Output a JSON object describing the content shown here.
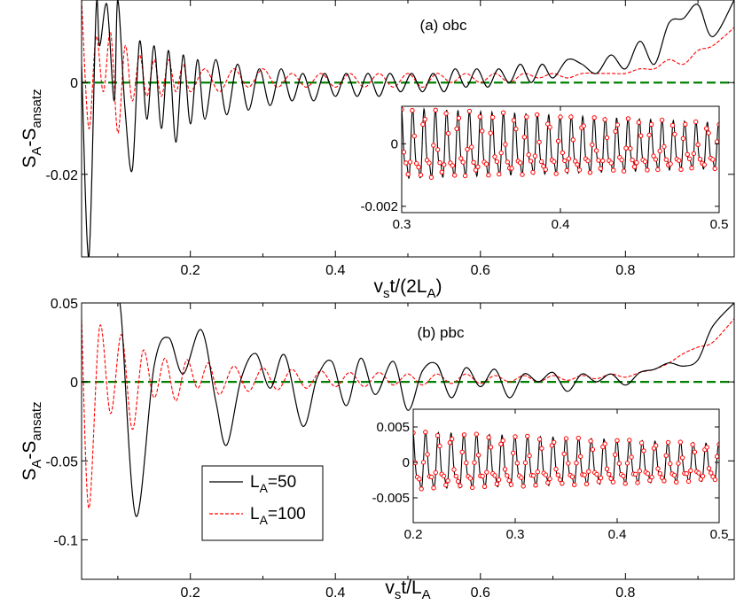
{
  "chart_data": [
    {
      "id": "a",
      "type": "line",
      "panel_label": "(a) obc",
      "xlabel": {
        "base": "v",
        "sub": "s",
        "rest": "t/(2L",
        "sub2": "A",
        "close": ")"
      },
      "ylabel": {
        "base": "S",
        "sub": "A",
        "mid": "-S",
        "sub2": "ansatz"
      },
      "xlim": [
        0.05,
        0.95
      ],
      "ylim": [
        -0.038,
        0.018
      ],
      "xticks": [
        0.2,
        0.4,
        0.6,
        0.8
      ],
      "xtick_labels": [
        "0.2",
        "0.4",
        "0.6",
        "0.8"
      ],
      "yticks": [
        0,
        -0.02
      ],
      "ytick_labels": [
        "0",
        "-0.02"
      ],
      "reference_line": 0,
      "series": [
        {
          "name": "L_A=50",
          "color": "#000000",
          "style": "solid",
          "x": [
            0.05,
            0.06,
            0.07,
            0.075,
            0.085,
            0.095,
            0.1,
            0.11,
            0.12,
            0.13,
            0.14,
            0.15,
            0.16,
            0.17,
            0.18,
            0.19,
            0.2,
            0.21,
            0.22,
            0.235,
            0.25,
            0.265,
            0.28,
            0.295,
            0.31,
            0.325,
            0.34,
            0.355,
            0.37,
            0.385,
            0.4,
            0.415,
            0.43,
            0.445,
            0.46,
            0.475,
            0.49,
            0.505,
            0.52,
            0.535,
            0.55,
            0.565,
            0.58,
            0.595,
            0.61,
            0.625,
            0.64,
            0.655,
            0.67,
            0.685,
            0.7,
            0.72,
            0.74,
            0.76,
            0.78,
            0.8,
            0.82,
            0.84,
            0.86,
            0.88,
            0.9,
            0.92,
            0.95
          ],
          "y": [
            0.004,
            -0.038,
            0.016,
            0.008,
            0.017,
            -0.004,
            0.018,
            -0.006,
            -0.019,
            0.009,
            -0.008,
            0.008,
            -0.01,
            0.007,
            -0.013,
            0.006,
            -0.009,
            0.005,
            -0.008,
            0.005,
            -0.007,
            0.004,
            -0.006,
            0.003,
            -0.005,
            0.003,
            -0.004,
            0.002,
            -0.004,
            0.002,
            -0.003,
            0.002,
            -0.003,
            0.002,
            -0.003,
            0.002,
            -0.002,
            0.002,
            -0.002,
            0.002,
            -0.002,
            0.003,
            -0.001,
            0.003,
            -0.001,
            0.003,
            0.0,
            0.004,
            0.0,
            0.004,
            0.001,
            0.005,
            0.004,
            0.002,
            0.006,
            0.003,
            0.009,
            0.004,
            0.013,
            0.014,
            0.017,
            0.01,
            0.018
          ]
        },
        {
          "name": "L_A=100",
          "color": "#ff0000",
          "style": "dashed",
          "x": [
            0.05,
            0.06,
            0.07,
            0.08,
            0.09,
            0.1,
            0.11,
            0.12,
            0.13,
            0.14,
            0.15,
            0.16,
            0.17,
            0.18,
            0.19,
            0.2,
            0.22,
            0.24,
            0.26,
            0.28,
            0.3,
            0.32,
            0.34,
            0.36,
            0.38,
            0.4,
            0.42,
            0.44,
            0.46,
            0.48,
            0.5,
            0.52,
            0.54,
            0.56,
            0.58,
            0.6,
            0.62,
            0.64,
            0.66,
            0.68,
            0.7,
            0.72,
            0.74,
            0.76,
            0.78,
            0.8,
            0.82,
            0.84,
            0.86,
            0.88,
            0.9,
            0.92,
            0.95
          ],
          "y": [
            0.018,
            -0.01,
            0.01,
            -0.002,
            0.011,
            -0.011,
            0.008,
            -0.004,
            0.006,
            -0.003,
            0.005,
            -0.003,
            0.005,
            -0.002,
            0.004,
            -0.002,
            0.003,
            -0.002,
            0.003,
            -0.001,
            0.003,
            -0.001,
            0.002,
            -0.001,
            0.002,
            -0.001,
            0.002,
            -0.001,
            0.002,
            -0.001,
            0.002,
            -0.001,
            0.002,
            0.0,
            0.002,
            0.0,
            0.002,
            0.0,
            0.002,
            0.001,
            0.002,
            0.001,
            0.002,
            0.002,
            0.002,
            0.002,
            0.003,
            0.003,
            0.005,
            0.004,
            0.007,
            0.008,
            0.012
          ]
        }
      ],
      "inset": {
        "xlim": [
          0.3,
          0.5
        ],
        "ylim": [
          -0.0022,
          0.0012
        ],
        "xticks": [
          0.3,
          0.4,
          0.5
        ],
        "xtick_labels": [
          "0.3",
          "0.4",
          "0.5"
        ],
        "yticks": [
          0,
          -0.002
        ],
        "ytick_labels": [
          "0",
          "-0.002"
        ],
        "period": 0.00714,
        "amplitude": 0.00125,
        "offset": -0.0002,
        "marker_color": "#ff0000"
      }
    },
    {
      "id": "b",
      "type": "line",
      "panel_label": "(b) pbc",
      "xlabel": {
        "base": "v",
        "sub": "s",
        "rest": "t/L",
        "sub2": "A",
        "close": ""
      },
      "ylabel": {
        "base": "S",
        "sub": "A",
        "mid": "-S",
        "sub2": "ansatz"
      },
      "xlim": [
        0.05,
        0.95
      ],
      "ylim": [
        -0.125,
        0.05
      ],
      "xticks": [
        0.2,
        0.4,
        0.6,
        0.8
      ],
      "xtick_labels": [
        "0.2",
        "0.4",
        "0.6",
        "0.8"
      ],
      "yticks": [
        0.05,
        0,
        -0.05,
        -0.1
      ],
      "ytick_labels": [
        "0.05",
        "0",
        "-0.05",
        "-0.1"
      ],
      "reference_line": 0,
      "series": [
        {
          "name": "L_A=50",
          "color": "#000000",
          "style": "solid",
          "x": [
            0.1,
            0.105,
            0.125,
            0.15,
            0.17,
            0.19,
            0.215,
            0.235,
            0.25,
            0.27,
            0.29,
            0.31,
            0.33,
            0.355,
            0.375,
            0.395,
            0.415,
            0.435,
            0.455,
            0.48,
            0.5,
            0.52,
            0.54,
            0.56,
            0.58,
            0.6,
            0.62,
            0.64,
            0.66,
            0.68,
            0.7,
            0.72,
            0.74,
            0.76,
            0.78,
            0.8,
            0.82,
            0.84,
            0.86,
            0.88,
            0.9,
            0.92,
            0.95
          ],
          "y": [
            0.05,
            0.04,
            -0.085,
            0.01,
            0.028,
            0.005,
            0.033,
            -0.012,
            -0.04,
            0.002,
            0.018,
            -0.004,
            0.017,
            -0.028,
            0.003,
            0.013,
            -0.015,
            0.015,
            -0.008,
            0.013,
            -0.018,
            0.007,
            0.011,
            -0.01,
            0.009,
            -0.003,
            0.008,
            -0.01,
            0.005,
            0.0,
            0.006,
            -0.006,
            0.005,
            0.0,
            0.005,
            -0.002,
            0.006,
            0.008,
            0.012,
            0.01,
            0.014,
            0.035,
            0.05
          ]
        },
        {
          "name": "L_A=100",
          "color": "#ff0000",
          "style": "dashed",
          "x": [
            0.05,
            0.06,
            0.075,
            0.09,
            0.105,
            0.12,
            0.135,
            0.15,
            0.165,
            0.18,
            0.195,
            0.21,
            0.225,
            0.24,
            0.26,
            0.28,
            0.3,
            0.32,
            0.34,
            0.36,
            0.38,
            0.4,
            0.42,
            0.44,
            0.46,
            0.48,
            0.5,
            0.52,
            0.54,
            0.56,
            0.58,
            0.6,
            0.62,
            0.64,
            0.66,
            0.68,
            0.7,
            0.72,
            0.74,
            0.76,
            0.78,
            0.8,
            0.82,
            0.84,
            0.86,
            0.88,
            0.9,
            0.92,
            0.95
          ],
          "y": [
            0.04,
            -0.08,
            0.035,
            -0.02,
            0.03,
            -0.03,
            0.02,
            -0.01,
            0.015,
            -0.012,
            0.014,
            -0.004,
            0.012,
            -0.008,
            0.01,
            -0.006,
            0.009,
            -0.005,
            0.008,
            -0.004,
            0.007,
            -0.003,
            0.006,
            -0.003,
            0.006,
            -0.002,
            0.005,
            -0.002,
            0.005,
            -0.001,
            0.005,
            -0.001,
            0.004,
            0.0,
            0.004,
            0.0,
            0.004,
            0.001,
            0.004,
            0.002,
            0.005,
            0.003,
            0.006,
            0.008,
            0.012,
            0.018,
            0.022,
            0.025,
            0.04
          ]
        }
      ],
      "inset": {
        "xlim": [
          0.2,
          0.5
        ],
        "ylim": [
          -0.0085,
          0.0075
        ],
        "xticks": [
          0.2,
          0.3,
          0.4,
          0.5
        ],
        "xtick_labels": [
          "0.2",
          "0.3",
          "0.4",
          "0.5"
        ],
        "yticks": [
          0.005,
          0,
          -0.005
        ],
        "ytick_labels": [
          "0.005",
          "0",
          "-0.005"
        ],
        "period": 0.0125,
        "amplitude": 0.0045,
        "offset": -0.0005,
        "marker_color": "#ff0000"
      }
    }
  ],
  "legend": {
    "placement": "bottom-left of panel (b)",
    "entries": [
      {
        "label_base": "L",
        "label_sub": "A",
        "label_rest": "=50",
        "color": "#000000",
        "style": "solid"
      },
      {
        "label_base": "L",
        "label_sub": "A",
        "label_rest": "=100",
        "color": "#ff0000",
        "style": "dashed"
      }
    ]
  },
  "reference_line_color": "#008000"
}
